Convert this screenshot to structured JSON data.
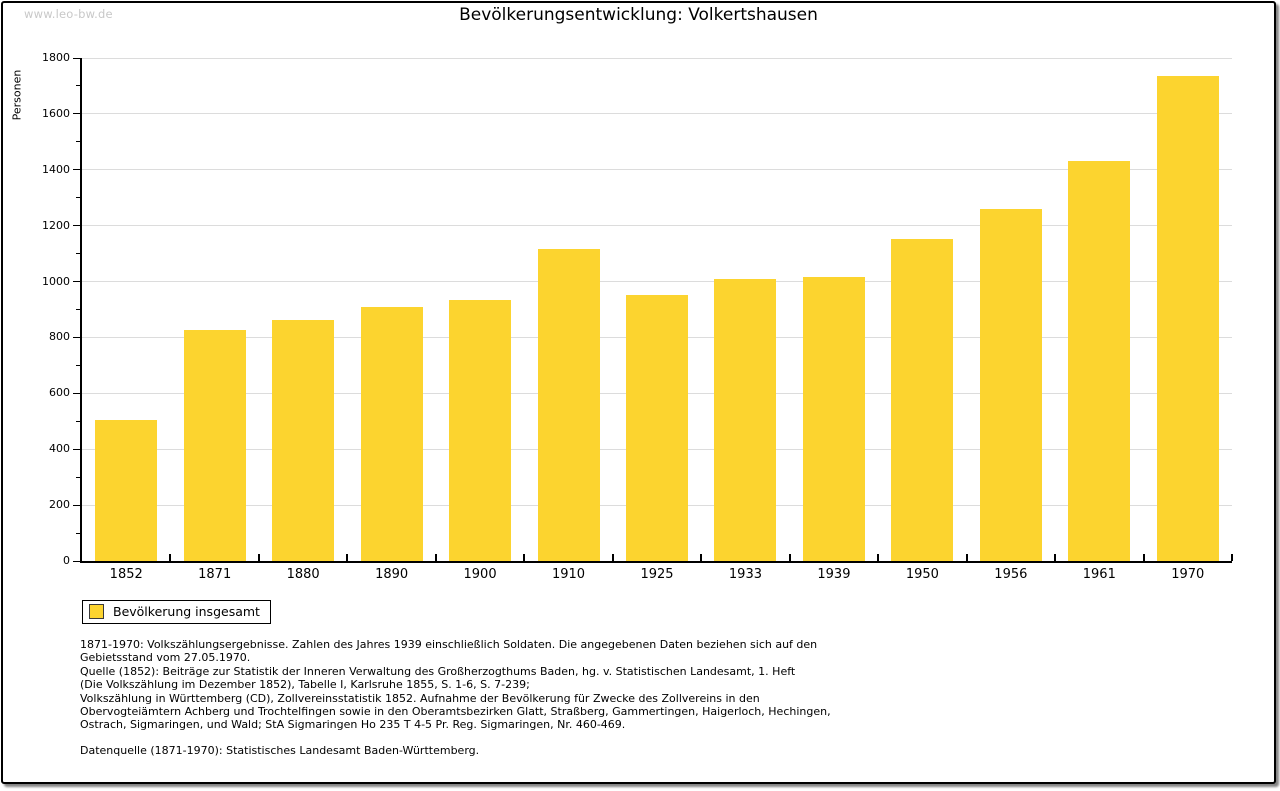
{
  "window": {
    "watermark": "www.leo-bw.de"
  },
  "header": {
    "title": "Bevölkerungsentwicklung: Volkertshausen"
  },
  "chart_data": {
    "type": "bar",
    "title": "Bevölkerungsentwicklung: Volkertshausen",
    "xlabel": "",
    "ylabel": "Personen",
    "categories": [
      "1852",
      "1871",
      "1880",
      "1890",
      "1900",
      "1910",
      "1925",
      "1933",
      "1939",
      "1950",
      "1956",
      "1961",
      "1970"
    ],
    "values": [
      505,
      826,
      862,
      908,
      934,
      1116,
      951,
      1010,
      1018,
      1152,
      1258,
      1431,
      1734
    ],
    "series_name": "Bevölkerung insgesamt",
    "ylim": [
      0,
      1800
    ],
    "ytick_step": 200,
    "yminor_step": 100,
    "grid": true,
    "legend_position": "bottom-left",
    "bar_color": "#fcd42f",
    "grid_color": "#dcdcdc",
    "watermark_color": "#c8c8c8"
  },
  "legend": {
    "label": "Bevölkerung insgesamt"
  },
  "footnotes": {
    "lines": [
      "1871-1970: Volkszählungsergebnisse. Zahlen des Jahres 1939 einschließlich Soldaten. Die angegebenen Daten beziehen sich auf den",
      "Gebietsstand vom 27.05.1970.",
      "Quelle (1852): Beiträge zur Statistik der Inneren Verwaltung des Großherzogthums Baden, hg. v. Statistischen Landesamt, 1. Heft",
      "(Die Volkszählung im Dezember 1852), Tabelle I, Karlsruhe 1855, S. 1-6, S. 7-239;",
      "Volkszählung in Württemberg (CD), Zollvereinsstatistik 1852. Aufnahme der Bevölkerung für Zwecke des Zollvereins in den",
      "Obervogteiämtern Achberg und Trochtelfingen sowie in den Oberamtsbezirken Glatt, Straßberg, Gammertingen, Haigerloch, Hechingen,",
      "Ostrach, Sigmaringen, und Wald; StA Sigmaringen Ho 235 T 4-5 Pr. Reg. Sigmaringen, Nr. 460-469."
    ],
    "datasource": "Datenquelle (1871-1970): Statistisches Landesamt Baden-Württemberg."
  }
}
